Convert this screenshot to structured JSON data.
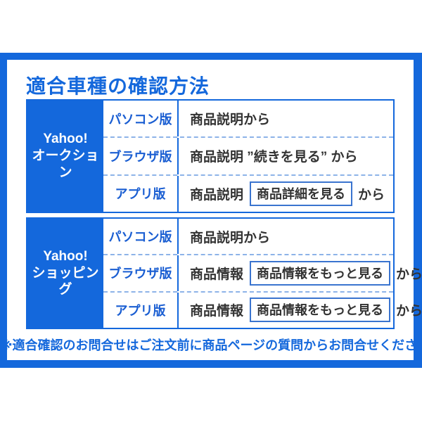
{
  "page": {
    "title": "適合車種の確認方法",
    "note": "※適合確認のお問合せはご注文前に商品ページの質問からお問合せください。"
  },
  "colors": {
    "accent_blue": "#1468dc",
    "dashed_divider_blue": "#8db3e8",
    "platform_text_blue": "#1a5ed2",
    "body_text": "#333333",
    "service_text": "#ffffff"
  },
  "sections": [
    {
      "service_line1": "Yahoo!",
      "service_line2": "オークション",
      "rows": [
        {
          "platform": "パソコン版",
          "text": "商品説明から"
        },
        {
          "platform": "ブラウザ版",
          "text": "商品説明 ”続きを見る” から"
        },
        {
          "platform": "アプリ版",
          "pre": "商品説明",
          "button": "商品詳細を見る",
          "post": "から"
        }
      ]
    },
    {
      "service_line1": "Yahoo!",
      "service_line2": "ショッピング",
      "rows": [
        {
          "platform": "パソコン版",
          "text": "商品説明から"
        },
        {
          "platform": "ブラウザ版",
          "pre": "商品情報",
          "button": "商品情報をもっと見る",
          "post": "から"
        },
        {
          "platform": "アプリ版",
          "pre": "商品情報",
          "button": "商品情報をもっと見る",
          "post": "から"
        }
      ]
    }
  ]
}
